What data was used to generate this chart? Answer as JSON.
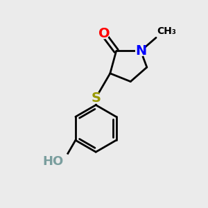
{
  "background_color": "#ebebeb",
  "bond_color": "#000000",
  "bond_width": 2.0,
  "atom_labels": {
    "O": {
      "color": "#ff0000",
      "fontsize": 14,
      "fontweight": "bold"
    },
    "N": {
      "color": "#0000ff",
      "fontsize": 14,
      "fontweight": "bold"
    },
    "S": {
      "color": "#999900",
      "fontsize": 14,
      "fontweight": "bold"
    },
    "HO": {
      "color": "#7a9e9e",
      "fontsize": 13,
      "fontweight": "bold"
    }
  },
  "figsize": [
    3.0,
    3.0
  ],
  "dpi": 100
}
